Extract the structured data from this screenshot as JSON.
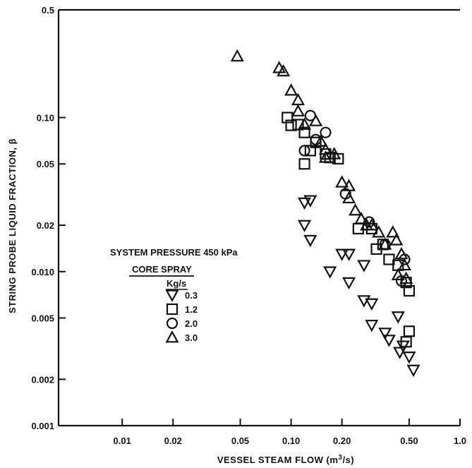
{
  "chart_data": {
    "type": "scatter",
    "xscale": "log",
    "yscale": "log",
    "xlim": [
      0.0042,
      1.0
    ],
    "ylim": [
      0.001,
      0.5
    ],
    "xlabel": "VESSEL STEAM FLOW (m3/s)",
    "xlabel_parts": [
      "VESSEL STEAM FLOW (m",
      "3",
      "/s)"
    ],
    "ylabel": "STRING PROBE LIQUID FRACTION, β",
    "x_ticks": [
      {
        "value": 0.01,
        "label": "0.01"
      },
      {
        "value": 0.02,
        "label": "0.02"
      },
      {
        "value": 0.05,
        "label": "0.05"
      },
      {
        "value": 0.1,
        "label": "0.10"
      },
      {
        "value": 0.2,
        "label": "0.20"
      },
      {
        "value": 0.5,
        "label": "0.50"
      },
      {
        "value": 1.0,
        "label": "1.0"
      }
    ],
    "y_ticks": [
      {
        "value": 0.001,
        "label": "0.001"
      },
      {
        "value": 0.002,
        "label": "0.002"
      },
      {
        "value": 0.005,
        "label": "0.005"
      },
      {
        "value": 0.01,
        "label": "0.010"
      },
      {
        "value": 0.02,
        "label": "0.02"
      },
      {
        "value": 0.05,
        "label": "0.05"
      },
      {
        "value": 0.1,
        "label": "0.10"
      },
      {
        "value": 0.5,
        "label": "0.5"
      }
    ],
    "legend": {
      "title_line1": "SYSTEM PRESSURE 450 kPa",
      "title_line2": "CORE SPRAY",
      "unit": "Kg/s",
      "placement": "center-left"
    },
    "series": [
      {
        "name": "0.3",
        "marker": "triangle-down",
        "points": [
          [
            0.12,
            0.028
          ],
          [
            0.13,
            0.029
          ],
          [
            0.12,
            0.02
          ],
          [
            0.13,
            0.016
          ],
          [
            0.17,
            0.01
          ],
          [
            0.2,
            0.013
          ],
          [
            0.22,
            0.013
          ],
          [
            0.22,
            0.0085
          ],
          [
            0.27,
            0.011
          ],
          [
            0.27,
            0.0065
          ],
          [
            0.3,
            0.0062
          ],
          [
            0.3,
            0.0045
          ],
          [
            0.36,
            0.004
          ],
          [
            0.38,
            0.0036
          ],
          [
            0.43,
            0.0051
          ],
          [
            0.44,
            0.003
          ],
          [
            0.46,
            0.0033
          ],
          [
            0.5,
            0.0028
          ],
          [
            0.53,
            0.0023
          ]
        ]
      },
      {
        "name": "1.2",
        "marker": "square",
        "points": [
          [
            0.095,
            0.1
          ],
          [
            0.1,
            0.089
          ],
          [
            0.11,
            0.09
          ],
          [
            0.12,
            0.08
          ],
          [
            0.14,
            0.069
          ],
          [
            0.13,
            0.061
          ],
          [
            0.16,
            0.058
          ],
          [
            0.17,
            0.055
          ],
          [
            0.19,
            0.054
          ],
          [
            0.12,
            0.05
          ],
          [
            0.25,
            0.019
          ],
          [
            0.3,
            0.019
          ],
          [
            0.32,
            0.014
          ],
          [
            0.35,
            0.015
          ],
          [
            0.38,
            0.012
          ],
          [
            0.43,
            0.011
          ],
          [
            0.48,
            0.0085
          ],
          [
            0.5,
            0.0075
          ],
          [
            0.5,
            0.0041
          ],
          [
            0.48,
            0.0035
          ]
        ]
      },
      {
        "name": "2.0",
        "marker": "circle",
        "points": [
          [
            0.13,
            0.103
          ],
          [
            0.12,
            0.061
          ],
          [
            0.14,
            0.072
          ],
          [
            0.16,
            0.08
          ],
          [
            0.21,
            0.032
          ],
          [
            0.29,
            0.021
          ],
          [
            0.36,
            0.015
          ],
          [
            0.45,
            0.0087
          ],
          [
            0.47,
            0.012
          ]
        ]
      },
      {
        "name": "3.0",
        "marker": "triangle-up",
        "points": [
          [
            0.048,
            0.25
          ],
          [
            0.085,
            0.21
          ],
          [
            0.09,
            0.2
          ],
          [
            0.1,
            0.15
          ],
          [
            0.11,
            0.13
          ],
          [
            0.11,
            0.11
          ],
          [
            0.12,
            0.09
          ],
          [
            0.14,
            0.095
          ],
          [
            0.15,
            0.07
          ],
          [
            0.16,
            0.062
          ],
          [
            0.16,
            0.055
          ],
          [
            0.18,
            0.058
          ],
          [
            0.2,
            0.038
          ],
          [
            0.22,
            0.036
          ],
          [
            0.22,
            0.03
          ],
          [
            0.24,
            0.025
          ],
          [
            0.26,
            0.022
          ],
          [
            0.28,
            0.02
          ],
          [
            0.3,
            0.02
          ],
          [
            0.33,
            0.018
          ],
          [
            0.36,
            0.015
          ],
          [
            0.4,
            0.018
          ],
          [
            0.42,
            0.016
          ],
          [
            0.45,
            0.013
          ],
          [
            0.47,
            0.011
          ],
          [
            0.43,
            0.0095
          ],
          [
            0.48,
            0.009
          ]
        ]
      }
    ]
  }
}
